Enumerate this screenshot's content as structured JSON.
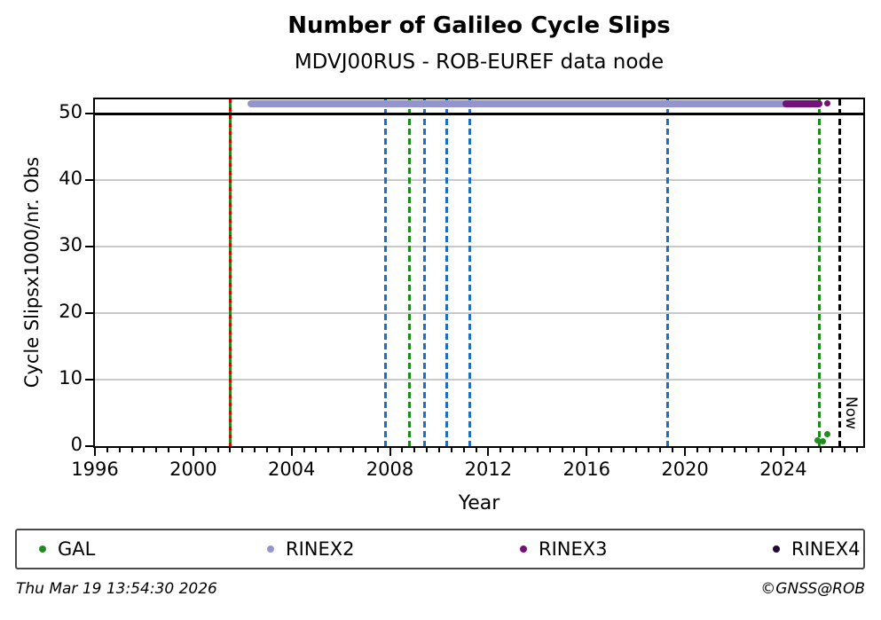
{
  "title": "Number of Galileo Cycle Slips",
  "subtitle": "MDVJ00RUS - ROB-EUREF data node",
  "footer": {
    "timestamp": "Thu Mar 19 13:54:30 2026",
    "credit": "©GNSS@ROB"
  },
  "legend": [
    {
      "label": "GAL",
      "color": "#228b22"
    },
    {
      "label": "RINEX2",
      "color": "#9494ce"
    },
    {
      "label": "RINEX3",
      "color": "#74107c"
    },
    {
      "label": "RINEX4",
      "color": "#250830"
    }
  ],
  "chart_data": {
    "type": "scatter",
    "title": "Number of Galileo Cycle Slips",
    "subtitle": "MDVJ00RUS - ROB-EUREF data node",
    "xlabel": "Year",
    "ylabel": "Cycle Slipsx1000/nr. Obs",
    "xlim": [
      1996,
      2027.25
    ],
    "ylim": [
      0,
      52.15
    ],
    "xticks": [
      1996,
      2000,
      2004,
      2008,
      2012,
      2016,
      2020,
      2024
    ],
    "x_minor_step": 0.5,
    "yticks": [
      0,
      10,
      20,
      30,
      40,
      50
    ],
    "gridlines_y": [
      10,
      20,
      30,
      40
    ],
    "grid": "horizontal-only",
    "legend_position": "bottom",
    "hline": {
      "y": 50,
      "color": "#000000"
    },
    "series": [
      {
        "name": "RINEX2",
        "type": "band",
        "y": 51.5,
        "x_start": 2002.35,
        "x_end": 2025.2,
        "color": "#9494ce"
      },
      {
        "name": "RINEX3",
        "type": "band",
        "y": 51.5,
        "x_start": 2024.1,
        "x_end": 2025.45,
        "color": "#74107c"
      },
      {
        "name": "RINEX3",
        "type": "points",
        "color": "#74107c",
        "points": [
          [
            2025.8,
            51.5
          ]
        ]
      },
      {
        "name": "GAL",
        "type": "points",
        "color": "#228b22",
        "points": [
          [
            2025.4,
            0.85
          ],
          [
            2025.62,
            0.7
          ],
          [
            2025.78,
            1.75
          ]
        ]
      }
    ],
    "event_lines": [
      {
        "x": 2001.5,
        "style": "solid",
        "color": "#1e8a1e"
      },
      {
        "x": 2001.5,
        "style": "dashed-fine",
        "color": "#dd0000"
      },
      {
        "x": 2007.8,
        "style": "dashed",
        "color": "#1c6fc2"
      },
      {
        "x": 2008.8,
        "style": "dashed",
        "color": "#1e8a1e"
      },
      {
        "x": 2009.4,
        "style": "dashed",
        "color": "#1c6fc2"
      },
      {
        "x": 2010.3,
        "style": "dashed",
        "color": "#1c6fc2"
      },
      {
        "x": 2011.25,
        "style": "dashed",
        "color": "#1c6fc2"
      },
      {
        "x": 2019.3,
        "style": "dashed",
        "color": "#1c6fc2"
      },
      {
        "x": 2025.45,
        "style": "dashed",
        "color": "#1e8a1e"
      }
    ],
    "now_line": {
      "x": 2026.3,
      "label": "Now",
      "style": "dashed",
      "color": "#000000"
    }
  }
}
